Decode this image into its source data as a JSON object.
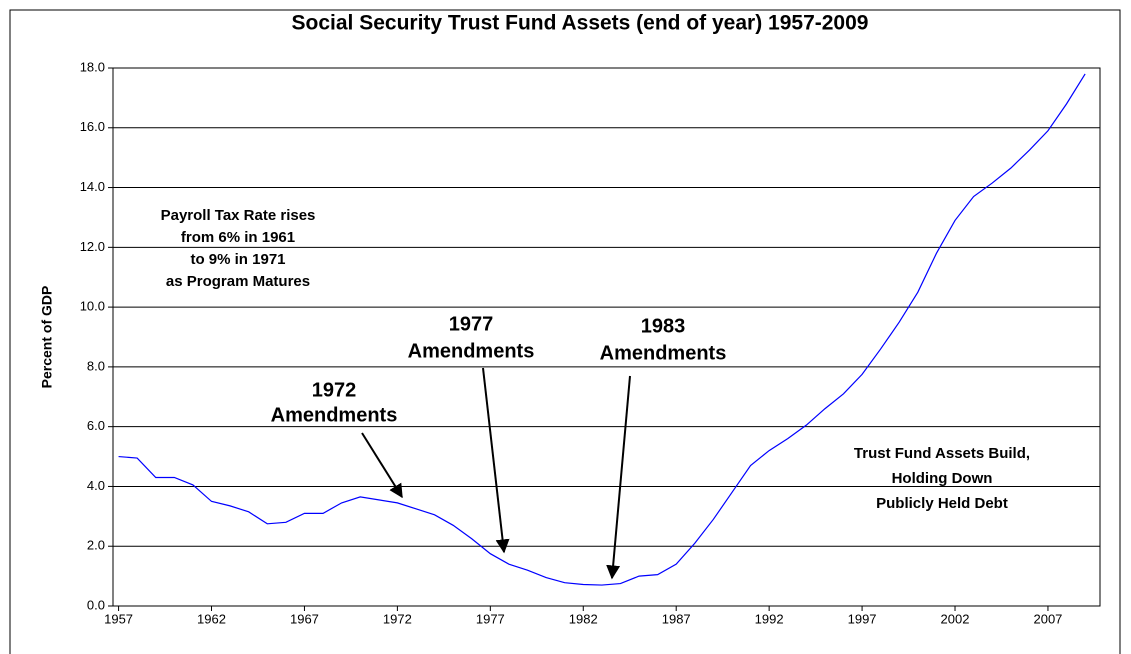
{
  "chart_data": {
    "type": "line",
    "title": "Social Security Trust Fund Assets (end of year) 1957-2009",
    "y_label": "Percent of GDP",
    "x": [
      1957,
      1958,
      1959,
      1960,
      1961,
      1962,
      1963,
      1964,
      1965,
      1966,
      1967,
      1968,
      1969,
      1970,
      1971,
      1972,
      1973,
      1974,
      1975,
      1976,
      1977,
      1978,
      1979,
      1980,
      1981,
      1982,
      1983,
      1984,
      1985,
      1986,
      1987,
      1988,
      1989,
      1990,
      1991,
      1992,
      1993,
      1994,
      1995,
      1996,
      1997,
      1998,
      1999,
      2000,
      2001,
      2002,
      2003,
      2004,
      2005,
      2006,
      2007,
      2008,
      2009
    ],
    "series": [
      {
        "name": "Trust Fund Assets",
        "color": "#0000ff",
        "values": [
          5.0,
          4.95,
          4.3,
          4.3,
          4.05,
          3.5,
          3.35,
          3.15,
          2.75,
          2.8,
          3.1,
          3.1,
          3.45,
          3.65,
          3.55,
          3.45,
          3.25,
          3.05,
          2.7,
          2.25,
          1.75,
          1.4,
          1.2,
          0.95,
          0.78,
          0.72,
          0.7,
          0.75,
          1.0,
          1.05,
          1.4,
          2.1,
          2.9,
          3.8,
          4.7,
          5.2,
          5.6,
          6.05,
          6.6,
          7.1,
          7.75,
          8.6,
          9.5,
          10.5,
          11.8,
          12.9,
          13.7,
          14.15,
          14.65,
          15.25,
          15.9,
          16.8,
          17.8
        ]
      }
    ],
    "xlim": [
      1956.7,
      2009.8
    ],
    "xticks": [
      1957,
      1962,
      1967,
      1972,
      1977,
      1982,
      1987,
      1992,
      1997,
      2002,
      2007
    ],
    "ylim": [
      0,
      18
    ],
    "yticks": [
      {
        "value": 0,
        "label": "0.0"
      },
      {
        "value": 2,
        "label": "2.0"
      },
      {
        "value": 4,
        "label": "4.0"
      },
      {
        "value": 6,
        "label": "6.0"
      },
      {
        "value": 8,
        "label": "8.0"
      },
      {
        "value": 10,
        "label": "10.0"
      },
      {
        "value": 12,
        "label": "12.0"
      },
      {
        "value": 14,
        "label": "14.0"
      },
      {
        "value": 16,
        "label": "16.0"
      },
      {
        "value": 18,
        "label": "18.0"
      }
    ],
    "grid": true,
    "annotations": [
      {
        "lines": [
          "Payroll Tax Rate rises",
          "from 6% in 1961",
          "to 9% in 1971",
          "as Program Matures"
        ]
      },
      {
        "lines": [
          "1972",
          "Amendments"
        ]
      },
      {
        "lines": [
          "1977",
          "Amendments"
        ]
      },
      {
        "lines": [
          "1983",
          "Amendments"
        ]
      },
      {
        "lines": [
          "Trust Fund Assets Build,",
          "Holding Down",
          "Publicly Held Debt"
        ]
      }
    ]
  }
}
